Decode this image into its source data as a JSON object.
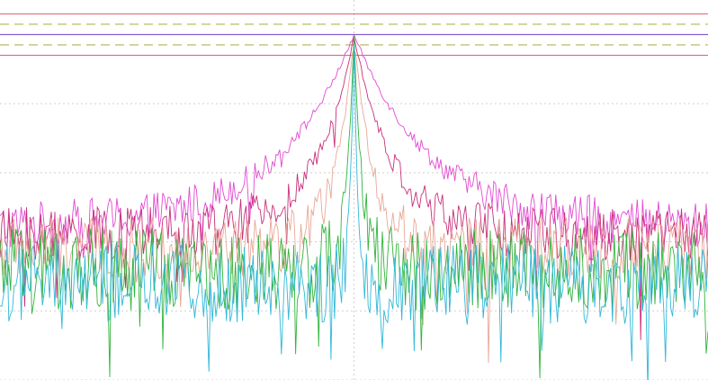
{
  "chart_data": {
    "type": "line",
    "title": "",
    "xlabel": "",
    "ylabel": "",
    "x_range": [
      -1,
      1
    ],
    "y_range": [
      -1.0,
      0.1
    ],
    "grid": true,
    "legend": "none",
    "reference_lines": [
      {
        "y": 0.06,
        "style": "solid",
        "color": "#e05a6a"
      },
      {
        "y": 0.03,
        "style": "dashed",
        "color": "#c8c87a"
      },
      {
        "y": 0.0,
        "style": "solid",
        "color": "#6a3cc8"
      },
      {
        "y": -0.03,
        "style": "dashed",
        "color": "#c8c87a"
      },
      {
        "y": -0.06,
        "style": "solid",
        "color": "#e05a6a"
      }
    ],
    "series": [
      {
        "color": "#e24ad2",
        "peak": 0.0,
        "width": 0.24,
        "floor": -0.56,
        "noise": 0.07
      },
      {
        "color": "#c8307a",
        "peak": 0.0,
        "width": 0.12,
        "floor": -0.58,
        "noise": 0.08
      },
      {
        "color": "#e8a898",
        "peak": 0.0,
        "width": 0.06,
        "floor": -0.62,
        "noise": 0.09
      },
      {
        "color": "#32b43c",
        "peak": 0.0,
        "width": 0.025,
        "floor": -0.68,
        "noise": 0.12
      },
      {
        "color": "#30b8d8",
        "peak": 0.0,
        "width": 0.012,
        "floor": -0.72,
        "noise": 0.12
      }
    ],
    "points_per_series": 400
  }
}
